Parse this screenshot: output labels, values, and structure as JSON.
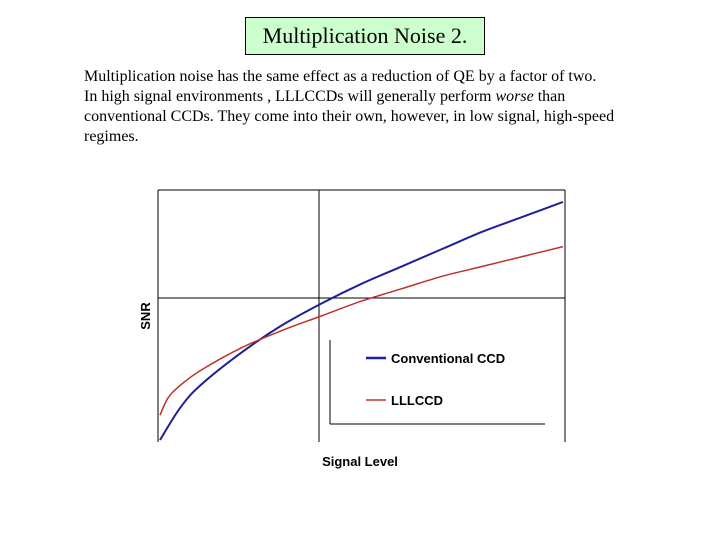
{
  "slide": {
    "title": "Multiplication Noise 2.",
    "paragraph": {
      "line1": "Multiplication noise has the same effect as a reduction of QE by a factor of two.",
      "line2_before": "In high signal environments , LLLCCDs will generally  perform ",
      "line2_emphasis": "worse",
      "line2_after": " than",
      "line3": "conventional CCDs. They come into their own, however, in low signal, high-speed",
      "line4": " regimes."
    }
  },
  "chart_data": {
    "type": "line",
    "title": "",
    "xlabel": "Signal Level",
    "ylabel": "SNR",
    "axis_ticks": "none",
    "grid": false,
    "legend_position": "bottom-right",
    "series": [
      {
        "name": "Conventional CCD",
        "color": "#1f1f99",
        "x": [
          0,
          0.05,
          0.1,
          0.2,
          0.3,
          0.4,
          0.5,
          0.6,
          0.7,
          0.8,
          0.9,
          1.0
        ],
        "y": [
          0,
          0.13,
          0.22,
          0.35,
          0.46,
          0.55,
          0.63,
          0.7,
          0.77,
          0.84,
          0.9,
          0.96
        ]
      },
      {
        "name": "LLLCCD",
        "color": "#c0302a",
        "x": [
          0,
          0.02,
          0.05,
          0.1,
          0.2,
          0.3,
          0.4,
          0.5,
          0.6,
          0.7,
          0.8,
          0.9,
          1.0
        ],
        "y": [
          0.1,
          0.17,
          0.22,
          0.28,
          0.37,
          0.44,
          0.5,
          0.56,
          0.61,
          0.66,
          0.7,
          0.74,
          0.78
        ]
      }
    ]
  }
}
